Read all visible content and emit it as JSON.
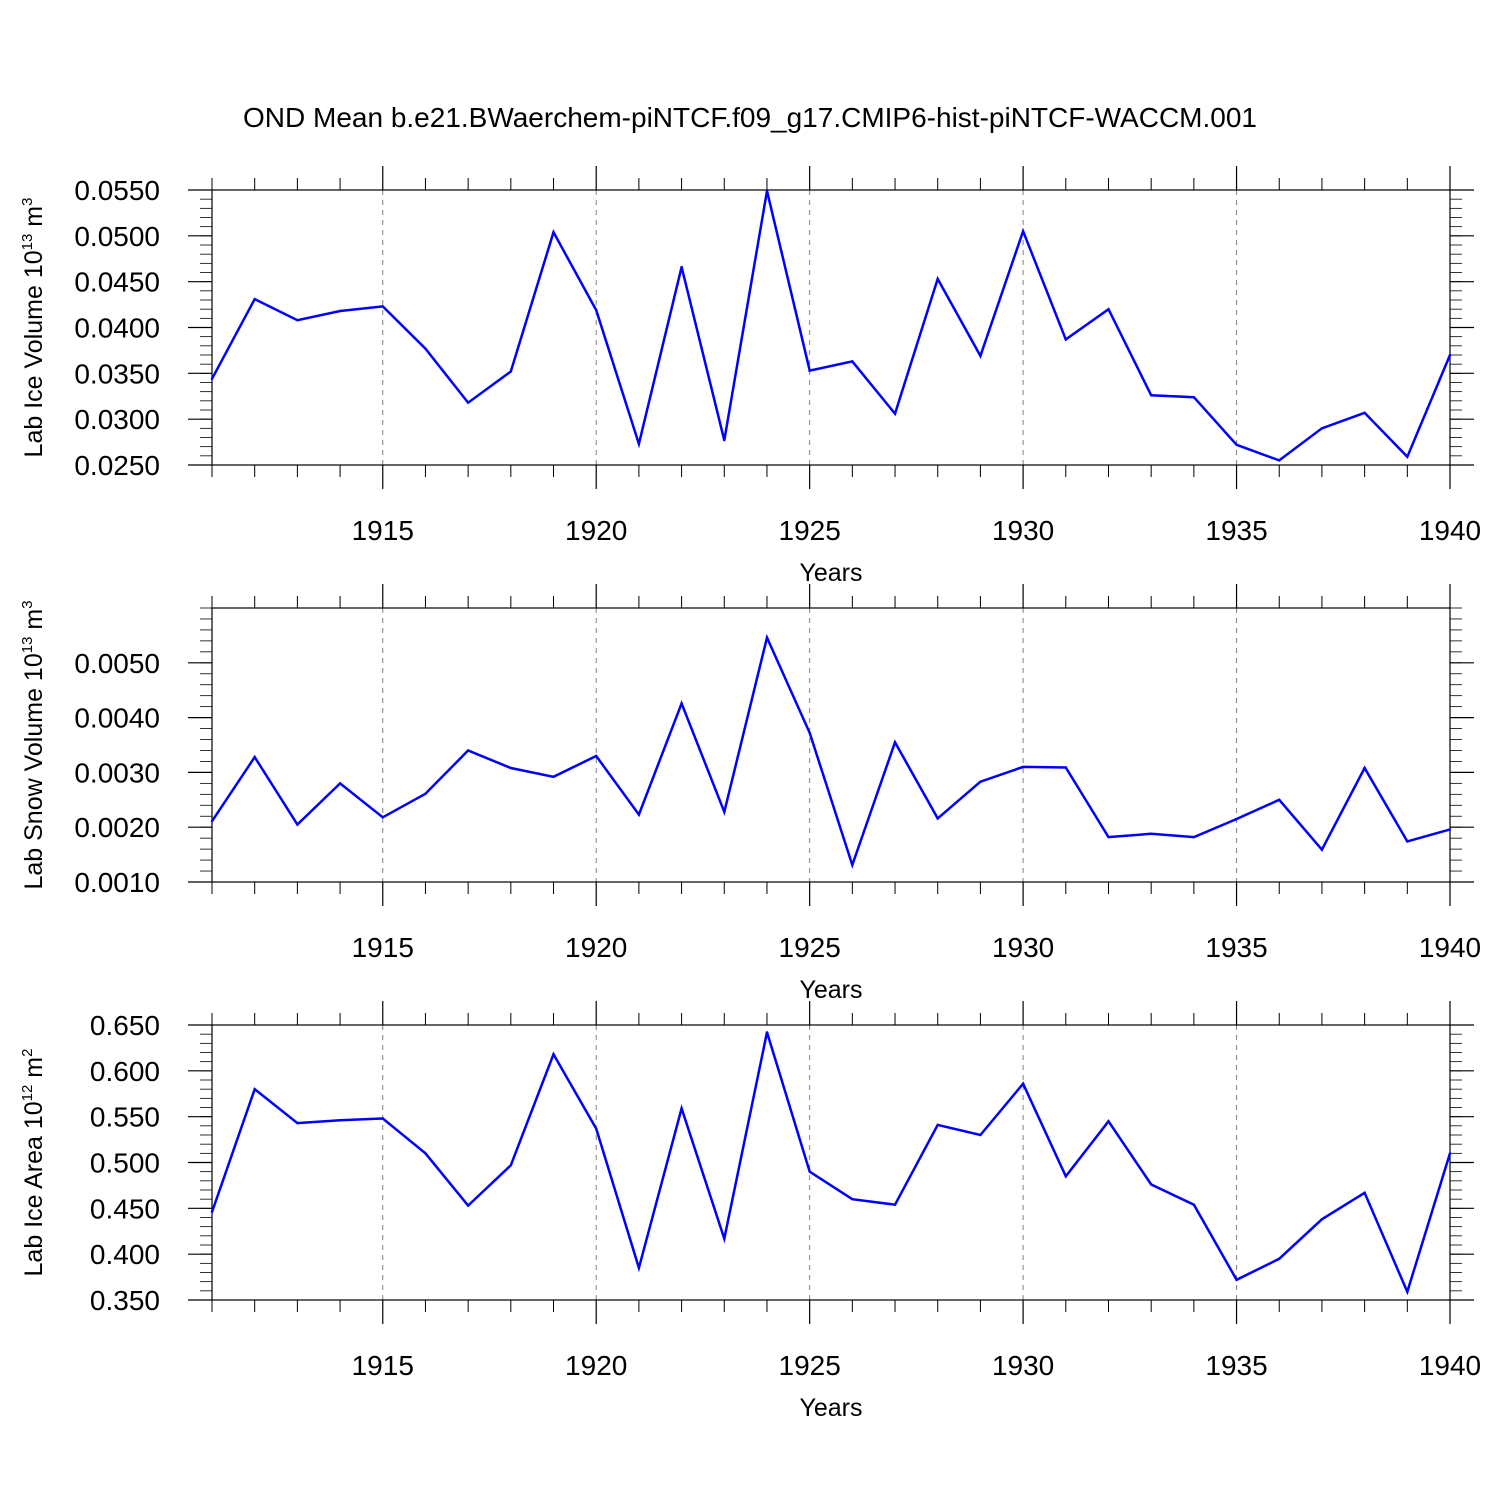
{
  "figure": {
    "title": "OND Mean b.e21.BWaerchem-piNTCF.f09_g17.CMIP6-hist-piNTCF-WACCM.001"
  },
  "colors": {
    "line": "#0000ff",
    "axis": "#000000",
    "grid": "#808080",
    "background": "#ffffff"
  },
  "chart_data": [
    {
      "type": "line",
      "ylabel_main": "Lab Ice Volume 10",
      "ylabel_exp": "13",
      "ylabel_unit": " m",
      "ylabel_unit_exp": "3",
      "xlabel": "Years",
      "grid": "x-major-dashed",
      "xlim": [
        1911,
        1940
      ],
      "ylim": [
        0.025,
        0.055
      ],
      "xticks": [
        1915,
        1920,
        1925,
        1930,
        1935,
        1940
      ],
      "yticks": [
        0.025,
        0.03,
        0.035,
        0.04,
        0.045,
        0.05,
        0.055
      ],
      "ytick_labels": [
        "0.0250",
        "0.0300",
        "0.0350",
        "0.0400",
        "0.0450",
        "0.0500",
        "0.0550"
      ],
      "yminor_step": 0.001,
      "x": [
        1911,
        1912,
        1913,
        1914,
        1915,
        1916,
        1917,
        1918,
        1919,
        1920,
        1921,
        1922,
        1923,
        1924,
        1925,
        1926,
        1927,
        1928,
        1929,
        1930,
        1931,
        1932,
        1933,
        1934,
        1935,
        1936,
        1937,
        1938,
        1939,
        1940
      ],
      "values": [
        0.0344,
        0.0431,
        0.0408,
        0.0418,
        0.0423,
        0.0377,
        0.0318,
        0.0352,
        0.0504,
        0.0419,
        0.0273,
        0.0466,
        0.0277,
        0.0549,
        0.0353,
        0.0363,
        0.0306,
        0.0453,
        0.0369,
        0.0505,
        0.0387,
        0.042,
        0.0326,
        0.0324,
        0.0272,
        0.0255,
        0.029,
        0.0307,
        0.0259,
        0.037
      ]
    },
    {
      "type": "line",
      "ylabel_main": "Lab Snow Volume 10",
      "ylabel_exp": "13",
      "ylabel_unit": " m",
      "ylabel_unit_exp": "3",
      "xlabel": "Years",
      "grid": "x-major-dashed",
      "xlim": [
        1911,
        1940
      ],
      "ylim": [
        0.001,
        0.006
      ],
      "xticks": [
        1915,
        1920,
        1925,
        1930,
        1935,
        1940
      ],
      "yticks": [
        0.001,
        0.002,
        0.003,
        0.004,
        0.005
      ],
      "ytick_labels": [
        "0.0010",
        "0.0020",
        "0.0030",
        "0.0040",
        "0.0050"
      ],
      "yminor_step": 0.0002,
      "x": [
        1911,
        1912,
        1913,
        1914,
        1915,
        1916,
        1917,
        1918,
        1919,
        1920,
        1921,
        1922,
        1923,
        1924,
        1925,
        1926,
        1927,
        1928,
        1929,
        1930,
        1931,
        1932,
        1933,
        1934,
        1935,
        1936,
        1937,
        1938,
        1939,
        1940
      ],
      "values": [
        0.00211,
        0.00328,
        0.00205,
        0.0028,
        0.00218,
        0.00261,
        0.0034,
        0.00308,
        0.00292,
        0.0033,
        0.00223,
        0.00426,
        0.00228,
        0.00546,
        0.00372,
        0.00131,
        0.00355,
        0.00216,
        0.00283,
        0.0031,
        0.00309,
        0.00182,
        0.00188,
        0.00182,
        0.00215,
        0.0025,
        0.00159,
        0.00308,
        0.00174,
        0.00196
      ]
    },
    {
      "type": "line",
      "ylabel_main": "Lab Ice Area 10",
      "ylabel_exp": "12",
      "ylabel_unit": " m",
      "ylabel_unit_exp": "2",
      "xlabel": "Years",
      "grid": "x-major-dashed",
      "xlim": [
        1911,
        1940
      ],
      "ylim": [
        0.35,
        0.65
      ],
      "xticks": [
        1915,
        1920,
        1925,
        1930,
        1935,
        1940
      ],
      "yticks": [
        0.35,
        0.4,
        0.45,
        0.5,
        0.55,
        0.6,
        0.65
      ],
      "ytick_labels": [
        "0.350",
        "0.400",
        "0.450",
        "0.500",
        "0.550",
        "0.600",
        "0.650"
      ],
      "yminor_step": 0.01,
      "x": [
        1911,
        1912,
        1913,
        1914,
        1915,
        1916,
        1917,
        1918,
        1919,
        1920,
        1921,
        1922,
        1923,
        1924,
        1925,
        1926,
        1927,
        1928,
        1929,
        1930,
        1931,
        1932,
        1933,
        1934,
        1935,
        1936,
        1937,
        1938,
        1939,
        1940
      ],
      "values": [
        0.446,
        0.58,
        0.543,
        0.546,
        0.548,
        0.51,
        0.453,
        0.497,
        0.618,
        0.537,
        0.385,
        0.559,
        0.417,
        0.642,
        0.49,
        0.46,
        0.454,
        0.541,
        0.53,
        0.586,
        0.485,
        0.545,
        0.476,
        0.454,
        0.372,
        0.395,
        0.438,
        0.467,
        0.359,
        0.51
      ]
    }
  ]
}
